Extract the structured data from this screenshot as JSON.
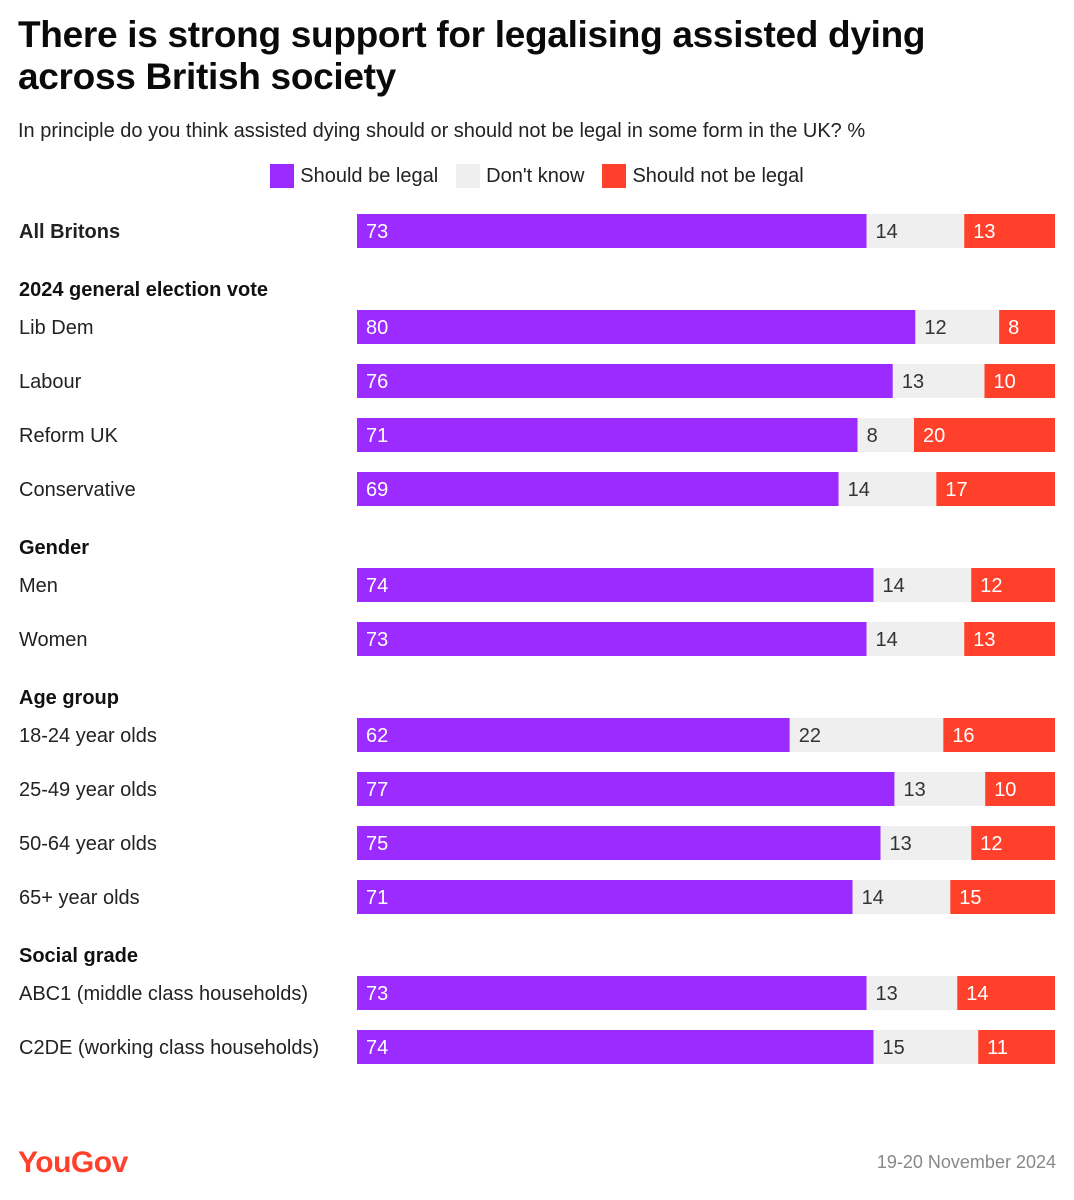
{
  "title": "There is strong support for legalising assisted dying across British society",
  "subtitle": "In principle do you think assisted dying should or should not be legal in some form in the UK? %",
  "legend": [
    {
      "label": "Should be legal",
      "color": "#9b2bff"
    },
    {
      "label": "Don't know",
      "color": "#efefef"
    },
    {
      "label": "Should not be legal",
      "color": "#ff412c"
    }
  ],
  "footer": {
    "brand": "YouGov",
    "date": "19-20 November 2024"
  },
  "chart_data": {
    "type": "bar",
    "orientation": "horizontal",
    "stacked": true,
    "series_names": [
      "Should be legal",
      "Don't know",
      "Should not be legal"
    ],
    "colors": [
      "#9b2bff",
      "#efefef",
      "#ff412c"
    ],
    "groups": [
      {
        "heading": "",
        "rows": [
          {
            "label": "All Britons",
            "values": [
              73,
              14,
              13
            ],
            "bold": true
          }
        ]
      },
      {
        "heading": "2024 general election vote",
        "rows": [
          {
            "label": "Lib Dem",
            "values": [
              80,
              12,
              8
            ]
          },
          {
            "label": "Labour",
            "values": [
              76,
              13,
              10
            ]
          },
          {
            "label": "Reform UK",
            "values": [
              71,
              8,
              20
            ]
          },
          {
            "label": "Conservative",
            "values": [
              69,
              14,
              17
            ]
          }
        ]
      },
      {
        "heading": "Gender",
        "rows": [
          {
            "label": "Men",
            "values": [
              74,
              14,
              12
            ]
          },
          {
            "label": "Women",
            "values": [
              73,
              14,
              13
            ]
          }
        ]
      },
      {
        "heading": "Age group",
        "rows": [
          {
            "label": "18-24 year olds",
            "values": [
              62,
              22,
              16
            ]
          },
          {
            "label": "25-49 year olds",
            "values": [
              77,
              13,
              10
            ]
          },
          {
            "label": "50-64 year olds",
            "values": [
              75,
              13,
              12
            ]
          },
          {
            "label": "65+ year olds",
            "values": [
              71,
              14,
              15
            ]
          }
        ]
      },
      {
        "heading": "Social grade",
        "rows": [
          {
            "label": "ABC1 (middle class households)",
            "values": [
              73,
              13,
              14
            ]
          },
          {
            "label": "C2DE (working class households)",
            "values": [
              74,
              15,
              11
            ]
          }
        ]
      }
    ]
  }
}
